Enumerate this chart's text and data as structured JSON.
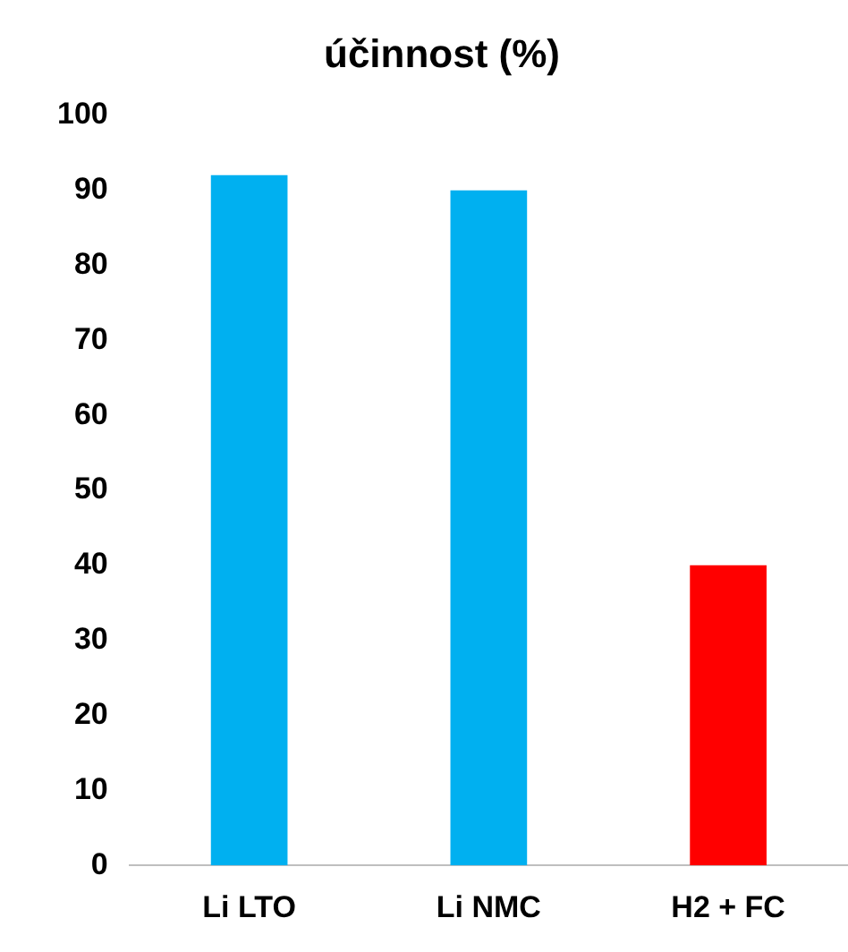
{
  "chart_data": {
    "type": "bar",
    "title": "účinnost (%)",
    "categories": [
      "Li LTO",
      "Li NMC",
      "H2 + FC"
    ],
    "values": [
      92,
      90,
      40
    ],
    "colors": [
      "#00b0f0",
      "#00b0f0",
      "#ff0000"
    ],
    "ylim": [
      0,
      100
    ],
    "yticks": [
      0,
      10,
      20,
      30,
      40,
      50,
      60,
      70,
      80,
      90,
      100
    ],
    "grid": false,
    "legend": false
  }
}
